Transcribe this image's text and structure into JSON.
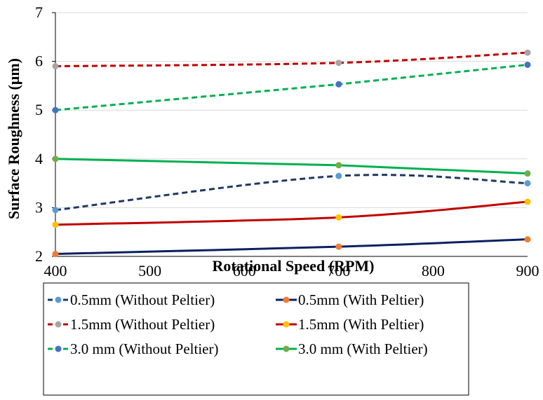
{
  "chart_data": {
    "type": "line",
    "xlabel": "Rotational Speed (RPM)",
    "ylabel": "Surface Roughness (μm)",
    "xlim": [
      400,
      900
    ],
    "ylim": [
      2,
      7
    ],
    "xticks": [
      400,
      500,
      600,
      700,
      800,
      900
    ],
    "yticks": [
      2,
      3,
      4,
      5,
      6,
      7
    ],
    "grid": "horizontal",
    "legend_position": "bottom",
    "x": [
      400,
      700,
      900
    ],
    "series": [
      {
        "name": "0.5mm (Without Peltier)",
        "values": [
          2.95,
          3.65,
          3.5
        ],
        "line_color": "#1f3864",
        "marker_color": "#5b9bd5",
        "dashed": true,
        "smooth": true
      },
      {
        "name": "0.5mm (With Peltier)",
        "values": [
          2.05,
          2.2,
          2.35
        ],
        "line_color": "#0b2060",
        "marker_color": "#ed7d31",
        "dashed": false,
        "smooth": true
      },
      {
        "name": "1.5mm (Without Peltier)",
        "values": [
          5.9,
          5.97,
          6.18
        ],
        "line_color": "#c00000",
        "marker_color": "#a5a5a5",
        "dashed": true,
        "smooth": true
      },
      {
        "name": "1.5mm (With Peltier)",
        "values": [
          2.65,
          2.8,
          3.12
        ],
        "line_color": "#c00000",
        "marker_color": "#ffc000",
        "dashed": false,
        "smooth": true
      },
      {
        "name": "3.0 mm (Without Peltier)",
        "values": [
          5.0,
          5.53,
          5.93
        ],
        "line_color": "#00b050",
        "marker_color": "#4472c4",
        "dashed": true,
        "smooth": false
      },
      {
        "name": "3.0 mm (With Peltier)",
        "values": [
          4.0,
          3.87,
          3.7
        ],
        "line_color": "#00b050",
        "marker_color": "#70ad47",
        "dashed": false,
        "smooth": false
      }
    ]
  }
}
